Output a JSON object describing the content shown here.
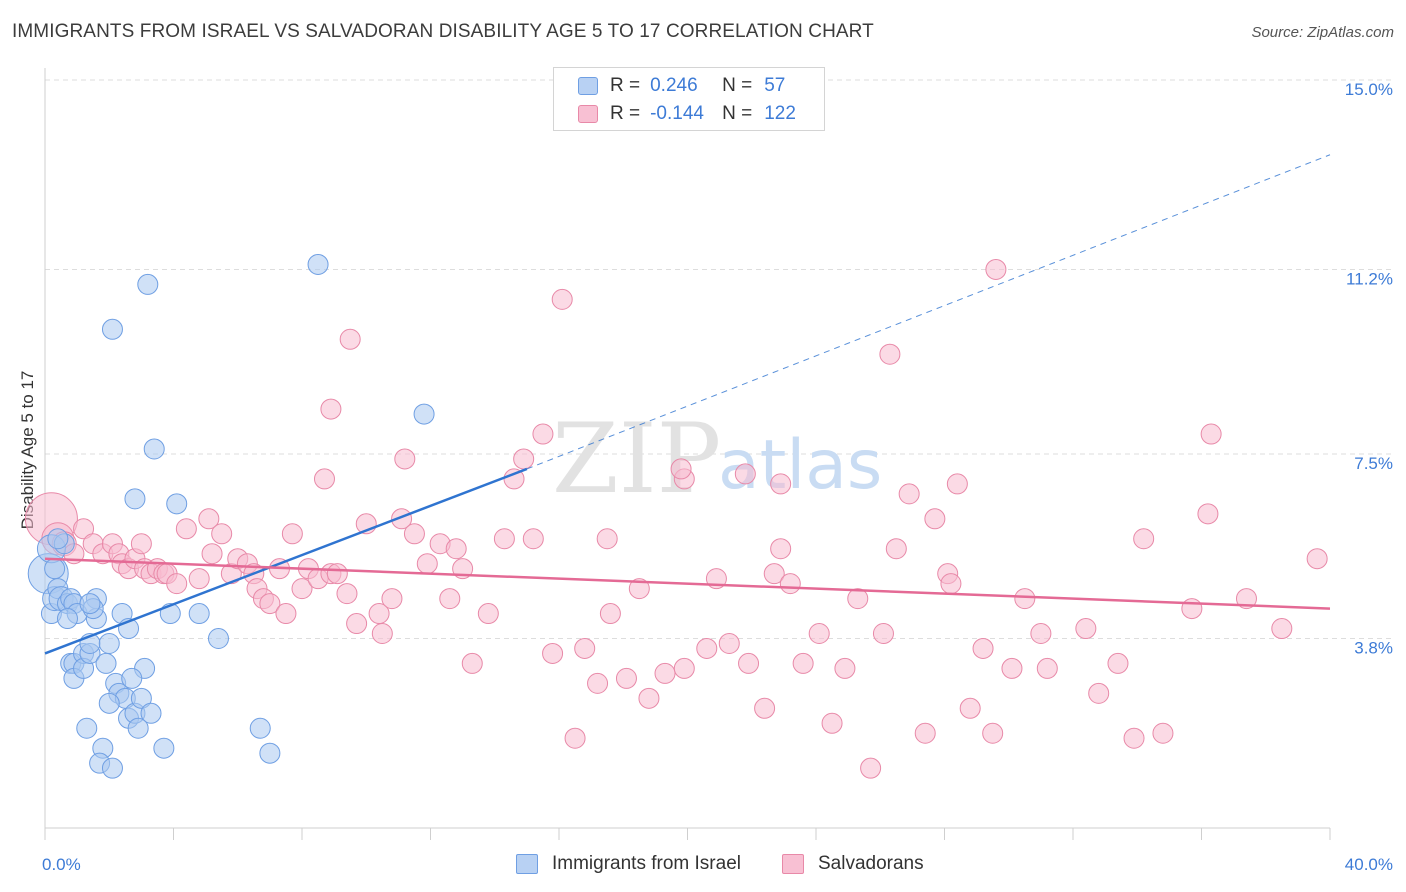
{
  "title": "IMMIGRANTS FROM ISRAEL VS SALVADORAN DISABILITY AGE 5 TO 17 CORRELATION CHART",
  "source": "Source: ZipAtlas.com",
  "watermark": {
    "zip": "ZIP",
    "atlas": "atlas"
  },
  "legend": {
    "rows": [
      {
        "r_label": "R =",
        "r_value": "0.246",
        "n_label": "N =",
        "n_value": "57"
      },
      {
        "r_label": "R =",
        "r_value": "-0.144",
        "n_label": "N =",
        "n_value": "122"
      }
    ]
  },
  "bottom_legend": {
    "series1": "Immigrants from Israel",
    "series2": "Salvadorans"
  },
  "colors": {
    "blue_fill": "#a9c8f0",
    "blue_stroke": "#6f9fe3",
    "blue_line": "#2f74d0",
    "pink_fill": "#f7bcd0",
    "pink_stroke": "#e889a8",
    "pink_line": "#e46a95",
    "tick_text": "#3d7bd6",
    "grid": "#dddddd"
  },
  "chart_data": {
    "type": "scatter",
    "title": "IMMIGRANTS FROM ISRAEL VS SALVADORAN DISABILITY AGE 5 TO 17 CORRELATION CHART",
    "xlabel": "",
    "ylabel": "Disability Age 5 to 17",
    "xlim": [
      0,
      40
    ],
    "ylim": [
      0,
      15.4
    ],
    "x_tick_labels": [
      "0.0%",
      "40.0%"
    ],
    "y_ticks": [
      3.8,
      7.5,
      11.2,
      15.0
    ],
    "y_tick_labels": [
      "3.8%",
      "7.5%",
      "11.2%",
      "15.0%"
    ],
    "grid": true,
    "legend_position": "top-center",
    "series": [
      {
        "name": "Immigrants from Israel",
        "R": 0.246,
        "N": 57,
        "trend": {
          "x0": 0,
          "y0": 3.5,
          "x1": 15,
          "y1": 7.2,
          "dashed_to_x": 40,
          "dashed_to_y": 13.5
        },
        "points": [
          [
            0.1,
            5.1,
            20
          ],
          [
            0.2,
            5.6,
            14
          ],
          [
            0.2,
            4.3,
            10
          ],
          [
            0.3,
            4.6,
            12
          ],
          [
            0.4,
            4.8,
            10
          ],
          [
            0.5,
            4.6,
            12
          ],
          [
            0.6,
            5.7,
            10
          ],
          [
            0.7,
            4.5,
            10
          ],
          [
            0.8,
            4.6,
            10
          ],
          [
            0.9,
            4.5,
            10
          ],
          [
            1.0,
            4.3,
            10
          ],
          [
            0.7,
            4.2,
            10
          ],
          [
            0.8,
            3.3,
            10
          ],
          [
            0.9,
            3.3,
            10
          ],
          [
            0.9,
            3.0,
            10
          ],
          [
            1.2,
            3.5,
            10
          ],
          [
            1.2,
            3.2,
            10
          ],
          [
            1.4,
            3.5,
            10
          ],
          [
            1.4,
            3.7,
            10
          ],
          [
            1.6,
            4.6,
            10
          ],
          [
            1.6,
            4.2,
            10
          ],
          [
            1.5,
            4.4,
            10
          ],
          [
            1.9,
            3.3,
            10
          ],
          [
            2.0,
            3.7,
            10
          ],
          [
            2.2,
            2.9,
            10
          ],
          [
            2.3,
            2.7,
            10
          ],
          [
            2.5,
            2.6,
            10
          ],
          [
            2.6,
            2.2,
            10
          ],
          [
            2.8,
            2.3,
            10
          ],
          [
            3.0,
            2.6,
            10
          ],
          [
            3.3,
            2.3,
            10
          ],
          [
            3.1,
            3.2,
            10
          ],
          [
            2.0,
            2.5,
            10
          ],
          [
            1.3,
            2.0,
            10
          ],
          [
            1.8,
            1.6,
            10
          ],
          [
            1.7,
            1.3,
            10
          ],
          [
            2.1,
            1.2,
            10
          ],
          [
            3.7,
            1.6,
            10
          ],
          [
            2.9,
            2.0,
            10
          ],
          [
            2.4,
            4.3,
            10
          ],
          [
            2.6,
            4.0,
            10
          ],
          [
            3.9,
            4.3,
            10
          ],
          [
            4.8,
            4.3,
            10
          ],
          [
            5.4,
            3.8,
            10
          ],
          [
            6.7,
            2.0,
            10
          ],
          [
            7.0,
            1.5,
            10
          ],
          [
            2.1,
            10.0,
            10
          ],
          [
            3.2,
            10.9,
            10
          ],
          [
            3.4,
            7.6,
            10
          ],
          [
            2.8,
            6.6,
            10
          ],
          [
            4.1,
            6.5,
            10
          ],
          [
            8.5,
            11.3,
            10
          ],
          [
            11.8,
            8.3,
            10
          ],
          [
            0.4,
            5.8,
            10
          ],
          [
            0.3,
            5.2,
            10
          ],
          [
            1.4,
            4.5,
            10
          ],
          [
            2.7,
            3.0,
            10
          ]
        ]
      },
      {
        "name": "Salvadorans",
        "R": -0.144,
        "N": 122,
        "trend": {
          "x0": 0,
          "y0": 5.4,
          "x1": 40,
          "y1": 4.4
        },
        "points": [
          [
            0.2,
            6.2,
            26
          ],
          [
            0.4,
            5.8,
            16
          ],
          [
            0.6,
            5.7,
            12
          ],
          [
            0.9,
            5.5,
            10
          ],
          [
            1.2,
            6.0,
            10
          ],
          [
            1.5,
            5.7,
            10
          ],
          [
            1.8,
            5.5,
            10
          ],
          [
            2.1,
            5.7,
            10
          ],
          [
            2.3,
            5.5,
            10
          ],
          [
            2.4,
            5.3,
            10
          ],
          [
            2.6,
            5.2,
            10
          ],
          [
            2.8,
            5.4,
            10
          ],
          [
            3.0,
            5.7,
            10
          ],
          [
            3.1,
            5.2,
            10
          ],
          [
            3.3,
            5.1,
            10
          ],
          [
            3.5,
            5.2,
            10
          ],
          [
            3.7,
            5.1,
            10
          ],
          [
            3.8,
            5.1,
            10
          ],
          [
            4.1,
            4.9,
            10
          ],
          [
            4.4,
            6.0,
            10
          ],
          [
            4.8,
            5.0,
            10
          ],
          [
            5.1,
            6.2,
            10
          ],
          [
            5.2,
            5.5,
            10
          ],
          [
            5.5,
            5.9,
            10
          ],
          [
            5.8,
            5.1,
            10
          ],
          [
            6.0,
            5.4,
            10
          ],
          [
            6.3,
            5.3,
            10
          ],
          [
            6.5,
            5.1,
            10
          ],
          [
            6.6,
            4.8,
            10
          ],
          [
            6.8,
            4.6,
            10
          ],
          [
            7.0,
            4.5,
            10
          ],
          [
            7.3,
            5.2,
            10
          ],
          [
            7.5,
            4.3,
            10
          ],
          [
            7.7,
            5.9,
            10
          ],
          [
            8.0,
            4.8,
            10
          ],
          [
            8.2,
            5.2,
            10
          ],
          [
            8.5,
            5.0,
            10
          ],
          [
            8.9,
            5.1,
            10
          ],
          [
            9.1,
            5.1,
            10
          ],
          [
            9.4,
            4.7,
            10
          ],
          [
            9.7,
            4.1,
            10
          ],
          [
            10.0,
            6.1,
            10
          ],
          [
            10.4,
            4.3,
            10
          ],
          [
            10.5,
            3.9,
            10
          ],
          [
            10.8,
            4.6,
            10
          ],
          [
            11.1,
            6.2,
            10
          ],
          [
            11.5,
            5.9,
            10
          ],
          [
            11.9,
            5.3,
            10
          ],
          [
            12.3,
            5.7,
            10
          ],
          [
            12.6,
            4.6,
            10
          ],
          [
            12.8,
            5.6,
            10
          ],
          [
            13.0,
            5.2,
            10
          ],
          [
            13.3,
            3.3,
            10
          ],
          [
            13.8,
            4.3,
            10
          ],
          [
            14.3,
            5.8,
            10
          ],
          [
            14.6,
            7.0,
            10
          ],
          [
            14.9,
            7.4,
            10
          ],
          [
            15.2,
            5.8,
            10
          ],
          [
            15.5,
            7.9,
            10
          ],
          [
            15.8,
            3.5,
            10
          ],
          [
            16.1,
            10.6,
            10
          ],
          [
            16.5,
            1.8,
            10
          ],
          [
            16.8,
            3.6,
            10
          ],
          [
            17.2,
            2.9,
            10
          ],
          [
            17.5,
            5.8,
            10
          ],
          [
            17.6,
            4.3,
            10
          ],
          [
            18.1,
            3.0,
            10
          ],
          [
            18.5,
            4.8,
            10
          ],
          [
            18.8,
            2.6,
            10
          ],
          [
            19.3,
            3.1,
            10
          ],
          [
            19.9,
            3.2,
            10
          ],
          [
            20.6,
            3.6,
            10
          ],
          [
            20.9,
            5.0,
            10
          ],
          [
            21.3,
            3.7,
            10
          ],
          [
            21.9,
            3.3,
            10
          ],
          [
            22.4,
            2.4,
            10
          ],
          [
            22.7,
            5.1,
            10
          ],
          [
            22.9,
            5.6,
            10
          ],
          [
            23.2,
            4.9,
            10
          ],
          [
            23.6,
            3.3,
            10
          ],
          [
            24.1,
            3.9,
            10
          ],
          [
            24.5,
            2.1,
            10
          ],
          [
            24.9,
            3.2,
            10
          ],
          [
            25.3,
            4.6,
            10
          ],
          [
            25.7,
            1.2,
            10
          ],
          [
            26.1,
            3.9,
            10
          ],
          [
            26.5,
            5.6,
            10
          ],
          [
            26.9,
            6.7,
            10
          ],
          [
            27.4,
            1.9,
            10
          ],
          [
            27.7,
            6.2,
            10
          ],
          [
            28.1,
            5.1,
            10
          ],
          [
            28.4,
            6.9,
            10
          ],
          [
            28.8,
            2.4,
            10
          ],
          [
            29.2,
            3.6,
            10
          ],
          [
            29.5,
            1.9,
            10
          ],
          [
            30.5,
            4.6,
            10
          ],
          [
            31.2,
            3.2,
            10
          ],
          [
            32.4,
            4.0,
            10
          ],
          [
            33.4,
            3.3,
            10
          ],
          [
            34.8,
            1.9,
            10
          ],
          [
            36.2,
            6.3,
            10
          ],
          [
            37.4,
            4.6,
            10
          ],
          [
            38.5,
            4.0,
            10
          ],
          [
            39.6,
            5.4,
            10
          ],
          [
            36.3,
            7.9,
            10
          ],
          [
            35.7,
            4.4,
            10
          ],
          [
            29.6,
            11.2,
            10
          ],
          [
            26.3,
            9.5,
            10
          ],
          [
            9.5,
            9.8,
            10
          ],
          [
            8.9,
            8.4,
            10
          ],
          [
            11.2,
            7.4,
            10
          ],
          [
            8.7,
            7.0,
            10
          ],
          [
            19.9,
            7.0,
            10
          ],
          [
            19.8,
            7.2,
            10
          ],
          [
            22.9,
            6.9,
            10
          ],
          [
            21.8,
            7.1,
            10
          ],
          [
            30.1,
            3.2,
            10
          ],
          [
            31.0,
            3.9,
            10
          ],
          [
            32.8,
            2.7,
            10
          ],
          [
            33.9,
            1.8,
            10
          ],
          [
            34.2,
            5.8,
            10
          ],
          [
            28.2,
            4.9,
            10
          ]
        ]
      }
    ]
  }
}
